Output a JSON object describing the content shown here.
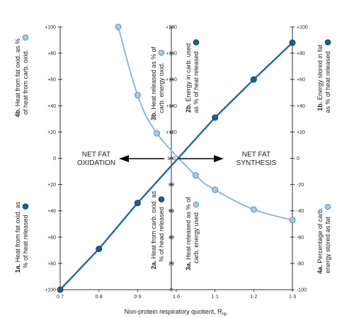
{
  "chart_data": {
    "type": "line",
    "xlabel": "Non-protein respiratory quotient, R",
    "xlabel_sub": "np",
    "x_ticks": [
      "0·7",
      "0·8",
      "0·9",
      "1·0",
      "1·1",
      "1·2",
      "1·3"
    ],
    "xlim": [
      0.7,
      1.3
    ],
    "ylim": [
      -100,
      100
    ],
    "left_ticks": [
      "+100",
      "+80",
      "+60",
      "+40",
      "+20",
      "0",
      "+20",
      "+40",
      "+60",
      "+80",
      "+100"
    ],
    "mid_ticks": [
      "+200",
      "+180",
      "+160",
      "+140",
      "+120",
      "100",
      "80",
      "60",
      "40",
      "20",
      "0"
    ],
    "right_ticks": [
      "+100",
      "+80",
      "+60",
      "+40",
      "+20",
      "0",
      "-20",
      "-40",
      "-60",
      "-80",
      "-100"
    ],
    "series": [
      {
        "key": "dark",
        "color": "#1c6aa3",
        "marker_fill": "#1c5f93",
        "x": [
          0.7,
          0.8,
          0.9,
          1.1,
          1.2,
          1.3
        ],
        "y": [
          -100,
          -69,
          -34,
          31,
          60,
          88
        ]
      },
      {
        "key": "light",
        "color": "#8fb9d8",
        "marker_fill": "#a9c8e2",
        "x": [
          0.85,
          0.9,
          0.95,
          1.05,
          1.1,
          1.2,
          1.3
        ],
        "y": [
          100,
          48,
          19,
          -13,
          -24,
          -39,
          -47
        ]
      }
    ],
    "annotations": {
      "oxidation": [
        "NET FAT",
        "OXIDATION"
      ],
      "synthesis": [
        "NET FAT",
        "SYNTHESIS"
      ]
    },
    "axis_labels": {
      "label_4b": {
        "num": "4b.",
        "lines": [
          "Heat from fat oxid. as %",
          "of heat from carb. oxid."
        ]
      },
      "label_1a": {
        "num": "1a.",
        "lines": [
          "Heat from fat oxid. as",
          "% of heat released"
        ]
      },
      "label_3b": {
        "num": "3b.",
        "lines": [
          "Heat released as % of",
          "carb. energy oxid."
        ]
      },
      "label_2b": {
        "num": "2b.",
        "lines": [
          "Energy in carb. used",
          "as % of heat released"
        ]
      },
      "label_2a": {
        "num": "2a.",
        "lines": [
          "Heat from carb. oxid. as",
          "% of head released"
        ]
      },
      "label_3a": {
        "num": "3a.",
        "lines": [
          "Heat released as % of",
          "carb. energy used"
        ]
      },
      "label_1b": {
        "num": "1b.",
        "lines": [
          "Energy stored in fat",
          "as % of heat released"
        ]
      },
      "label_4a": {
        "num": "4a.",
        "lines": [
          "Percentage of carb.",
          "energy stored as fat"
        ]
      }
    }
  }
}
